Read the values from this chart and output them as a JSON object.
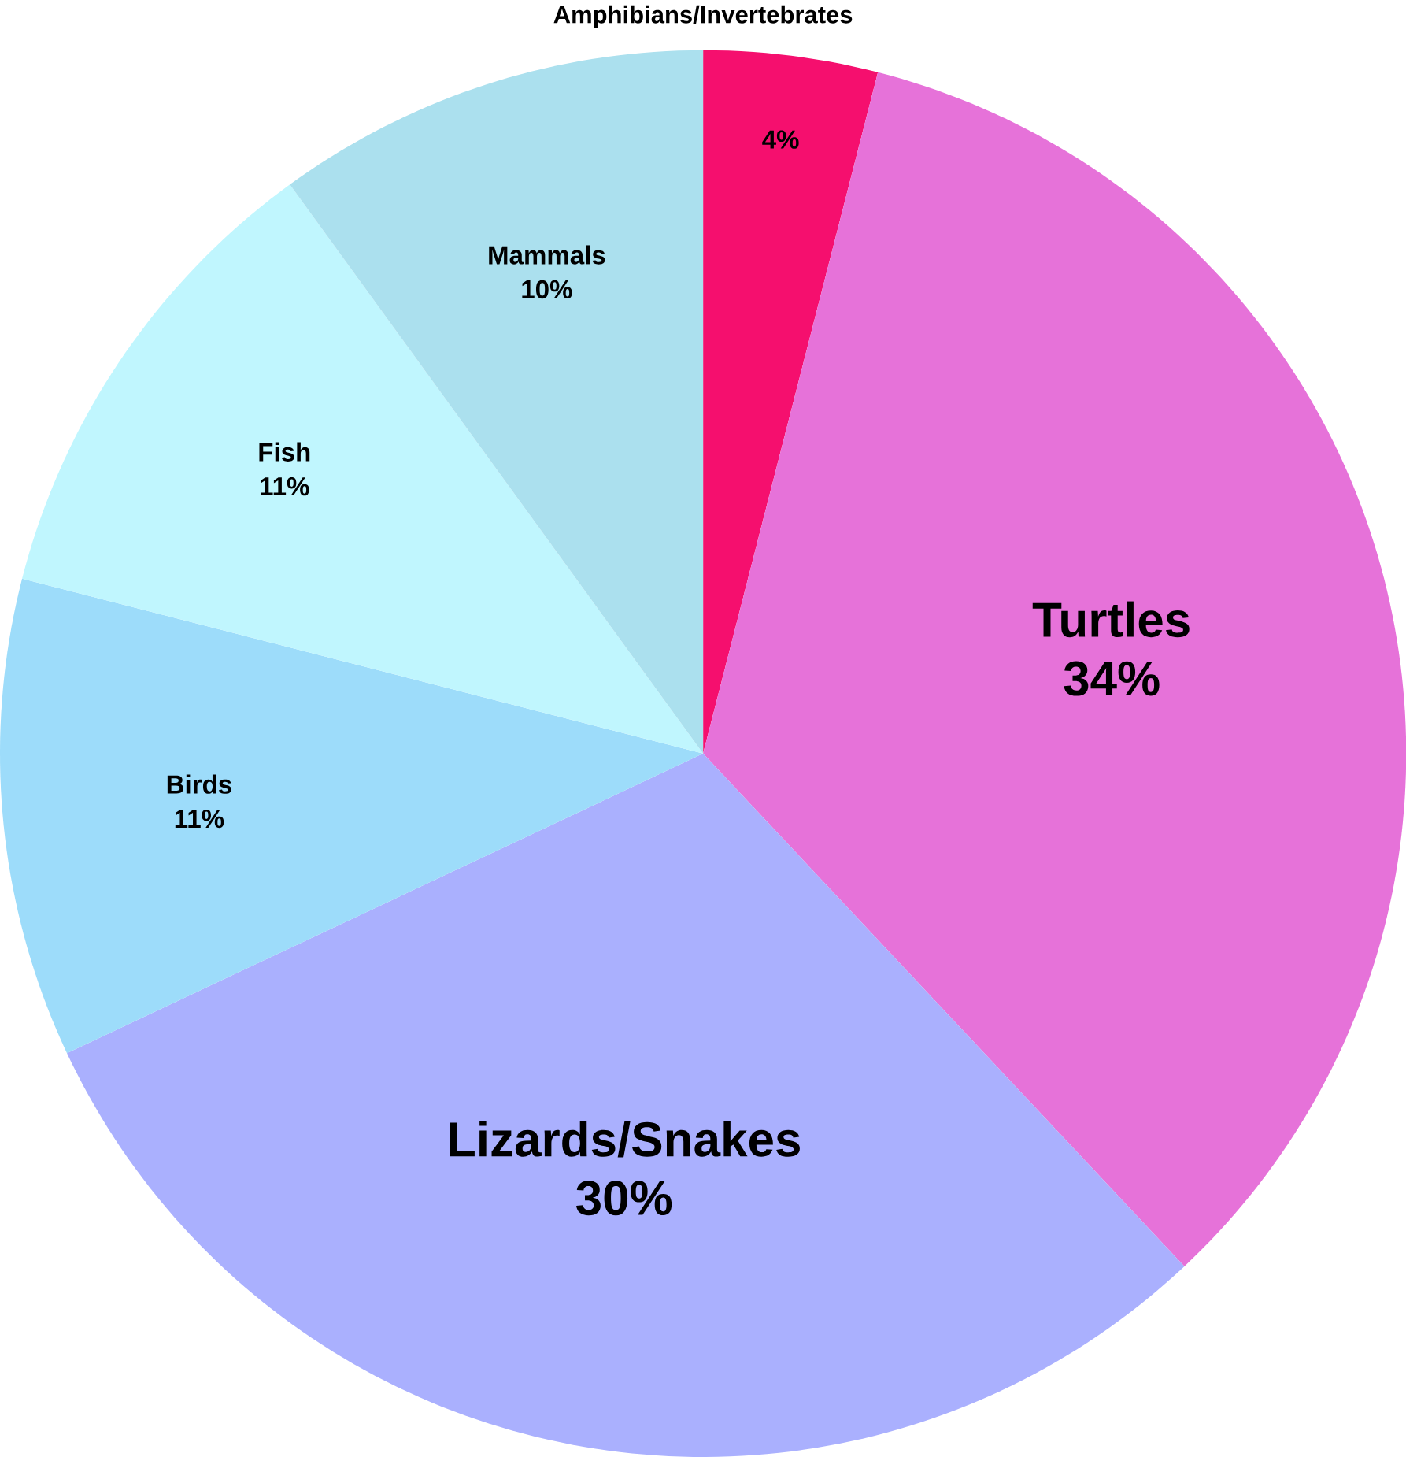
{
  "chart_data": {
    "type": "pie",
    "categories": [
      "Amphibians/Invertebrates",
      "Turtles",
      "Lizards/Snakes",
      "Birds",
      "Fish",
      "Mammals"
    ],
    "values": [
      4,
      34,
      30,
      11,
      11,
      10
    ],
    "value_labels": [
      "4%",
      "34%",
      "30%",
      "11%",
      "11%",
      "10%"
    ],
    "colors": [
      "#f50f6e",
      "#e672d9",
      "#aab0fe",
      "#9ddcfa",
      "#c0f6fe",
      "#abe0ee"
    ]
  }
}
